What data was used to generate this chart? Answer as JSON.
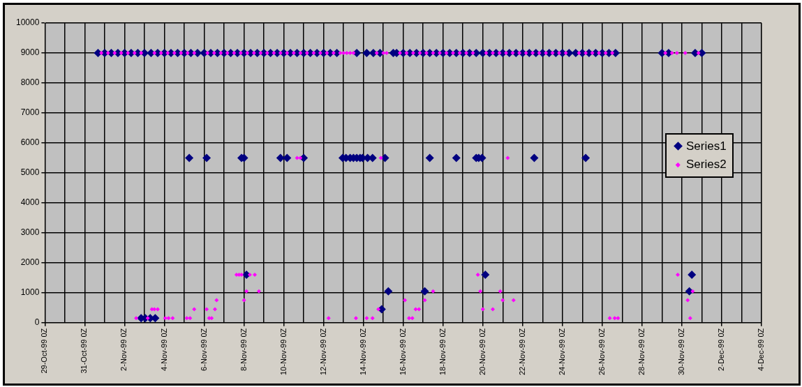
{
  "chart_data": {
    "type": "scatter",
    "xlim": [
      "1999-10-29",
      "1999-12-04"
    ],
    "ylim": [
      0,
      10000
    ],
    "yticks": [
      0,
      1000,
      2000,
      3000,
      4000,
      5000,
      6000,
      7000,
      8000,
      9000,
      10000
    ],
    "xticks": [
      {
        "value": "1999-10-29",
        "label": "29-Oct-99 0Z"
      },
      {
        "value": "1999-10-30",
        "label": null
      },
      {
        "value": "1999-10-31",
        "label": "31-Oct-99 0Z"
      },
      {
        "value": "1999-11-01",
        "label": null
      },
      {
        "value": "1999-11-02",
        "label": "2-Nov-99 0Z"
      },
      {
        "value": "1999-11-03",
        "label": null
      },
      {
        "value": "1999-11-04",
        "label": "4-Nov-99 0Z"
      },
      {
        "value": "1999-11-05",
        "label": null
      },
      {
        "value": "1999-11-06",
        "label": "6-Nov-99 0Z"
      },
      {
        "value": "1999-11-07",
        "label": null
      },
      {
        "value": "1999-11-08",
        "label": "8-Nov-99 0Z"
      },
      {
        "value": "1999-11-09",
        "label": null
      },
      {
        "value": "1999-11-10",
        "label": "10-Nov-99 0Z"
      },
      {
        "value": "1999-11-11",
        "label": null
      },
      {
        "value": "1999-11-12",
        "label": "12-Nov-99 0Z"
      },
      {
        "value": "1999-11-13",
        "label": null
      },
      {
        "value": "1999-11-14",
        "label": "14-Nov-99 0Z"
      },
      {
        "value": "1999-11-15",
        "label": null
      },
      {
        "value": "1999-11-16",
        "label": "16-Nov-99 0Z"
      },
      {
        "value": "1999-11-17",
        "label": null
      },
      {
        "value": "1999-11-18",
        "label": "18-Nov-99 0Z"
      },
      {
        "value": "1999-11-19",
        "label": null
      },
      {
        "value": "1999-11-20",
        "label": "20-Nov-99 0Z"
      },
      {
        "value": "1999-11-21",
        "label": null
      },
      {
        "value": "1999-11-22",
        "label": "22-Nov-99 0Z"
      },
      {
        "value": "1999-11-23",
        "label": null
      },
      {
        "value": "1999-11-24",
        "label": "24-Nov-99 0Z"
      },
      {
        "value": "1999-11-25",
        "label": null
      },
      {
        "value": "1999-11-26",
        "label": "26-Nov-99 0Z"
      },
      {
        "value": "1999-11-27",
        "label": null
      },
      {
        "value": "1999-11-28",
        "label": "28-Nov-99 0Z"
      },
      {
        "value": "1999-11-29",
        "label": null
      },
      {
        "value": "1999-11-30",
        "label": "30-Nov-99 0Z"
      },
      {
        "value": "1999-12-01",
        "label": null
      },
      {
        "value": "1999-12-02",
        "label": "2-Dec-99 0Z"
      },
      {
        "value": "1999-12-03",
        "label": null
      },
      {
        "value": "1999-12-04",
        "label": "4-Dec-99 0Z"
      }
    ],
    "grid": true,
    "legend": "right",
    "marker": "diamond",
    "series": [
      {
        "name": "Series1",
        "color": "#000080",
        "x": [
          "1999-10-31T16:00",
          "1999-11-01T00:00",
          "1999-11-01T08:00",
          "1999-11-01T16:00",
          "1999-11-02T00:00",
          "1999-11-02T08:00",
          "1999-11-02T16:00",
          "1999-11-03T00:00",
          "1999-11-03T08:00",
          "1999-11-03T16:00",
          "1999-11-04T00:00",
          "1999-11-04T08:00",
          "1999-11-04T16:00",
          "1999-11-05T00:00",
          "1999-11-05T08:00",
          "1999-11-05T16:00",
          "1999-11-06T00:00",
          "1999-11-06T08:00",
          "1999-11-06T16:00",
          "1999-11-07T00:00",
          "1999-11-07T08:00",
          "1999-11-07T16:00",
          "1999-11-08T00:00",
          "1999-11-08T08:00",
          "1999-11-08T16:00",
          "1999-11-09T00:00",
          "1999-11-09T08:00",
          "1999-11-09T16:00",
          "1999-11-10T00:00",
          "1999-11-10T08:00",
          "1999-11-10T16:00",
          "1999-11-11T00:00",
          "1999-11-11T08:00",
          "1999-11-11T16:00",
          "1999-11-12T00:00",
          "1999-11-12T08:00",
          "1999-11-12T16:00",
          "1999-11-13T16:00",
          "1999-11-14T04:00",
          "1999-11-14T12:00",
          "1999-11-14T20:00",
          "1999-11-15T12:00",
          "1999-11-15T16:00",
          "1999-11-16T00:00",
          "1999-11-16T08:00",
          "1999-11-16T16:00",
          "1999-11-17T00:00",
          "1999-11-17T08:00",
          "1999-11-17T16:00",
          "1999-11-18T00:00",
          "1999-11-18T08:00",
          "1999-11-18T16:00",
          "1999-11-19T00:00",
          "1999-11-19T08:00",
          "1999-11-19T16:00",
          "1999-11-20T00:00",
          "1999-11-20T08:00",
          "1999-11-20T16:00",
          "1999-11-21T00:00",
          "1999-11-21T08:00",
          "1999-11-21T16:00",
          "1999-11-22T00:00",
          "1999-11-22T08:00",
          "1999-11-22T16:00",
          "1999-11-23T00:00",
          "1999-11-23T08:00",
          "1999-11-23T16:00",
          "1999-11-24T00:00",
          "1999-11-24T08:00",
          "1999-11-24T16:00",
          "1999-11-25T00:00",
          "1999-11-25T08:00",
          "1999-11-25T16:00",
          "1999-11-26T00:00",
          "1999-11-26T08:00",
          "1999-11-26T16:00",
          "1999-11-29T00:00",
          "1999-11-29T08:00",
          "1999-11-30T16:00",
          "1999-12-01T00:00",
          "1999-11-05T06:00",
          "1999-11-06T03:00",
          "1999-11-07T21:00",
          "1999-11-08T00:00",
          "1999-11-09T20:00",
          "1999-11-10T04:00",
          "1999-11-11T00:00",
          "1999-11-12T23:00",
          "1999-11-13T03:00",
          "1999-11-13T08:00",
          "1999-11-13T12:00",
          "1999-11-13T16:00",
          "1999-11-13T20:00",
          "1999-11-13T23:00",
          "1999-11-14T05:00",
          "1999-11-14T11:00",
          "1999-11-15T02:00",
          "1999-11-17T08:00",
          "1999-11-18T16:00",
          "1999-11-19T16:00",
          "1999-11-19T19:00",
          "1999-11-19T23:00",
          "1999-11-22T14:00",
          "1999-11-25T04:00",
          "1999-11-02T20:00",
          "1999-11-03T01:00",
          "1999-11-03T07:00",
          "1999-11-03T13:00",
          "1999-11-08T03:00",
          "1999-11-15T06:00",
          "1999-11-14T22:00",
          "1999-11-17T02:00",
          "1999-11-20T03:00",
          "1999-11-30T12:00",
          "1999-11-30T09:00"
        ],
        "values": [
          9000,
          9000,
          9000,
          9000,
          9000,
          9000,
          9000,
          9000,
          9000,
          9000,
          9000,
          9000,
          9000,
          9000,
          9000,
          9000,
          9000,
          9000,
          9000,
          9000,
          9000,
          9000,
          9000,
          9000,
          9000,
          9000,
          9000,
          9000,
          9000,
          9000,
          9000,
          9000,
          9000,
          9000,
          9000,
          9000,
          9000,
          9000,
          9000,
          9000,
          9000,
          9000,
          9000,
          9000,
          9000,
          9000,
          9000,
          9000,
          9000,
          9000,
          9000,
          9000,
          9000,
          9000,
          9000,
          9000,
          9000,
          9000,
          9000,
          9000,
          9000,
          9000,
          9000,
          9000,
          9000,
          9000,
          9000,
          9000,
          9000,
          9000,
          9000,
          9000,
          9000,
          9000,
          9000,
          9000,
          9000,
          9000,
          9000,
          9000,
          5500,
          5500,
          5500,
          5500,
          5500,
          5500,
          5500,
          5500,
          5500,
          5500,
          5500,
          5500,
          5500,
          5500,
          5500,
          5500,
          5500,
          5500,
          5500,
          5500,
          5500,
          5500,
          5500,
          5500,
          150,
          150,
          150,
          150,
          1600,
          1050,
          450,
          1050,
          1600,
          1600,
          1050
        ]
      },
      {
        "name": "Series2",
        "color": "#ff00ff",
        "x": [
          "1999-10-31T20:00",
          "1999-11-01T04:00",
          "1999-11-01T12:00",
          "1999-11-01T20:00",
          "1999-11-02T04:00",
          "1999-11-02T12:00",
          "1999-11-02T20:00",
          "1999-11-03T12:00",
          "1999-11-03T20:00",
          "1999-11-04T04:00",
          "1999-11-04T12:00",
          "1999-11-04T20:00",
          "1999-11-05T04:00",
          "1999-11-05T12:00",
          "1999-11-06T04:00",
          "1999-11-06T12:00",
          "1999-11-06T20:00",
          "1999-11-07T04:00",
          "1999-11-07T12:00",
          "1999-11-07T20:00",
          "1999-11-08T04:00",
          "1999-11-08T12:00",
          "1999-11-08T20:00",
          "1999-11-09T04:00",
          "1999-11-09T12:00",
          "1999-11-09T20:00",
          "1999-11-10T04:00",
          "1999-11-10T12:00",
          "1999-11-10T20:00",
          "1999-11-11T04:00",
          "1999-11-11T12:00",
          "1999-11-11T20:00",
          "1999-11-12T04:00",
          "1999-11-12T12:00",
          "1999-11-12T20:00",
          "1999-11-13T00:00",
          "1999-11-13T04:00",
          "1999-11-13T08:00",
          "1999-11-13T12:00",
          "1999-11-14T16:00",
          "1999-11-15T00:00",
          "1999-11-15T04:00",
          "1999-11-15T20:00",
          "1999-11-16T04:00",
          "1999-11-16T12:00",
          "1999-11-16T20:00",
          "1999-11-17T04:00",
          "1999-11-17T12:00",
          "1999-11-17T20:00",
          "1999-11-18T04:00",
          "1999-11-18T12:00",
          "1999-11-18T20:00",
          "1999-11-19T04:00",
          "1999-11-19T12:00",
          "1999-11-20T04:00",
          "1999-11-20T12:00",
          "1999-11-20T20:00",
          "1999-11-21T04:00",
          "1999-11-21T12:00",
          "1999-11-21T20:00",
          "1999-11-22T04:00",
          "1999-11-22T12:00",
          "1999-11-22T20:00",
          "1999-11-23T04:00",
          "1999-11-23T12:00",
          "1999-11-23T20:00",
          "1999-11-24T04:00",
          "1999-11-24T20:00",
          "1999-11-25T04:00",
          "1999-11-25T12:00",
          "1999-11-25T20:00",
          "1999-11-26T04:00",
          "1999-11-26T12:00",
          "1999-11-29T04:00",
          "1999-11-29T12:00",
          "1999-11-29T18:00",
          "1999-11-30T04:00",
          "1999-11-30T20:00",
          "1999-11-10T16:00",
          "1999-11-10T20:00",
          "1999-11-14T21:00",
          "1999-11-21T06:00",
          "1999-11-02T14:00",
          "1999-11-03T04:00",
          "1999-11-04T01:00",
          "1999-11-04T05:00",
          "1999-11-04T10:00",
          "1999-11-05T03:00",
          "1999-11-05T07:00",
          "1999-11-06T06:00",
          "1999-11-06T09:00",
          "1999-11-12T06:00",
          "1999-11-13T15:00",
          "1999-11-14T04:00",
          "1999-11-14T11:00",
          "1999-11-16T07:00",
          "1999-11-16T11:00",
          "1999-11-26T09:00",
          "1999-11-26T15:00",
          "1999-11-26T19:00",
          "1999-11-30T10:00",
          "1999-11-03T09:00",
          "1999-11-03T12:00",
          "1999-11-03T16:00",
          "1999-11-05T12:00",
          "1999-11-06T03:00",
          "1999-11-06T13:00",
          "1999-11-14T18:00",
          "1999-11-16T15:00",
          "1999-11-16T19:00",
          "1999-11-20T00:00",
          "1999-11-20T12:00",
          "1999-11-06T15:00",
          "1999-11-08T00:00",
          "1999-11-16T02:00",
          "1999-11-17T02:00",
          "1999-11-21T00:00",
          "1999-11-21T13:00",
          "1999-11-30T07:00",
          "1999-11-08T03:00",
          "1999-11-08T18:00",
          "1999-11-17T12:00",
          "1999-11-19T21:00",
          "1999-11-20T21:00",
          "1999-11-30T13:00",
          "1999-11-07T15:00",
          "1999-11-07T18:00",
          "1999-11-07T21:00",
          "1999-11-08T07:00",
          "1999-11-08T13:00",
          "1999-11-19T18:00",
          "1999-11-29T19:00"
        ],
        "values": [
          9000,
          9000,
          9000,
          9000,
          9000,
          9000,
          9000,
          9000,
          9000,
          9000,
          9000,
          9000,
          9000,
          9000,
          9000,
          9000,
          9000,
          9000,
          9000,
          9000,
          9000,
          9000,
          9000,
          9000,
          9000,
          9000,
          9000,
          9000,
          9000,
          9000,
          9000,
          9000,
          9000,
          9000,
          9000,
          9000,
          9000,
          9000,
          9000,
          9000,
          9000,
          9000,
          9000,
          9000,
          9000,
          9000,
          9000,
          9000,
          9000,
          9000,
          9000,
          9000,
          9000,
          9000,
          9000,
          9000,
          9000,
          9000,
          9000,
          9000,
          9000,
          9000,
          9000,
          9000,
          9000,
          9000,
          9000,
          9000,
          9000,
          9000,
          9000,
          9000,
          9000,
          9000,
          9000,
          9000,
          9000,
          9000,
          5500,
          5500,
          5500,
          5500,
          150,
          150,
          150,
          150,
          150,
          150,
          150,
          150,
          150,
          150,
          150,
          150,
          150,
          150,
          150,
          150,
          150,
          150,
          150,
          450,
          450,
          450,
          450,
          450,
          450,
          450,
          450,
          450,
          450,
          450,
          750,
          750,
          750,
          750,
          750,
          750,
          750,
          1050,
          1050,
          1050,
          1050,
          1050,
          1050,
          1600,
          1600,
          1600,
          1600,
          1600,
          1600,
          1600
        ]
      }
    ]
  }
}
